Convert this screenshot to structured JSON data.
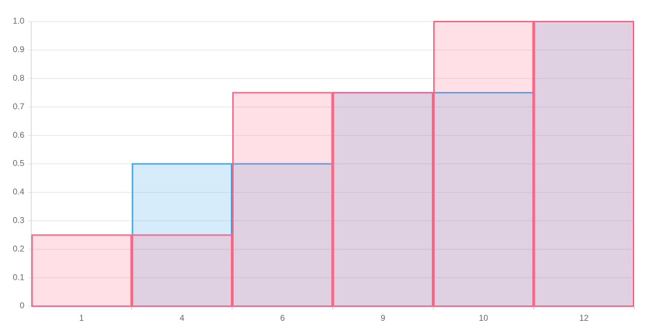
{
  "chart_data": {
    "type": "bar",
    "categories": [
      "1",
      "4",
      "6",
      "9",
      "10",
      "12"
    ],
    "series": [
      {
        "color": "#36a2eb",
        "values": [
          0,
          0.5,
          0.5,
          0.75,
          0.75,
          1
        ]
      },
      {
        "color": "#ff6384",
        "values": [
          0.25,
          0.25,
          0.75,
          0.75,
          1,
          1
        ]
      }
    ],
    "ylim": [
      0,
      1
    ],
    "yticks": [
      0,
      0.1,
      0.2,
      0.3,
      0.4,
      0.5,
      0.6,
      0.7,
      0.8,
      0.9,
      {
        "value": 1,
        "label": "1.0"
      }
    ],
    "grid": true
  }
}
